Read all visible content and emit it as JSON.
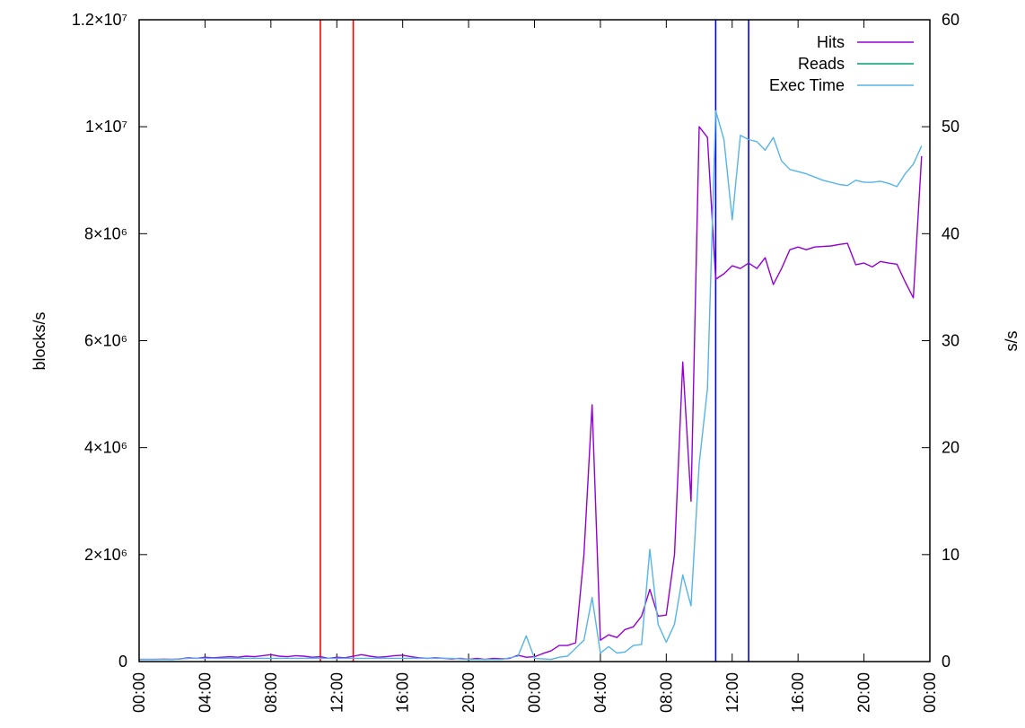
{
  "chart_data": {
    "type": "line",
    "ylabel": "blocks/s",
    "y2label": "s/s",
    "ylim": [
      0,
      12000000
    ],
    "y2lim": [
      0,
      60
    ],
    "xlim": [
      0,
      48
    ],
    "x_tick_labels": [
      "00:00",
      "04:00",
      "08:00",
      "12:00",
      "16:00",
      "20:00",
      "00:00",
      "04:00",
      "08:00",
      "12:00",
      "16:00",
      "20:00",
      "00:00"
    ],
    "y_tick_labels": [
      "0",
      "2×10⁶",
      "4×10⁶",
      "6×10⁶",
      "8×10⁶",
      "1×10⁷",
      "1.2×10⁷"
    ],
    "y2_tick_labels": [
      "0",
      "10",
      "20",
      "30",
      "40",
      "50",
      "60"
    ],
    "legend_position": "top-right",
    "legend": [
      "Hits",
      "Reads",
      "Exec Time"
    ],
    "vertical_markers": [
      {
        "x": 11.0,
        "color": "#ff0000"
      },
      {
        "x": 13.0,
        "color": "#ff0000"
      },
      {
        "x": 35.0,
        "color": "#0000ff"
      },
      {
        "x": 37.0,
        "color": "#0000ff"
      }
    ],
    "series": [
      {
        "name": "Hits",
        "axis": "y",
        "color": "#9400d3",
        "points": [
          [
            0,
            40000
          ],
          [
            0.5,
            40000
          ],
          [
            1,
            40000
          ],
          [
            1.5,
            45000
          ],
          [
            2,
            40000
          ],
          [
            2.5,
            50000
          ],
          [
            3,
            70000
          ],
          [
            3.5,
            60000
          ],
          [
            4,
            80000
          ],
          [
            4.5,
            70000
          ],
          [
            5,
            80000
          ],
          [
            5.5,
            90000
          ],
          [
            6,
            80000
          ],
          [
            6.5,
            100000
          ],
          [
            7,
            90000
          ],
          [
            7.5,
            110000
          ],
          [
            8,
            130000
          ],
          [
            8.5,
            100000
          ],
          [
            9,
            90000
          ],
          [
            9.5,
            110000
          ],
          [
            10,
            100000
          ],
          [
            10.5,
            80000
          ],
          [
            11,
            90000
          ],
          [
            11.5,
            60000
          ],
          [
            12,
            80000
          ],
          [
            12.5,
            70000
          ],
          [
            13,
            100000
          ],
          [
            13.5,
            130000
          ],
          [
            14,
            100000
          ],
          [
            14.5,
            80000
          ],
          [
            15,
            90000
          ],
          [
            15.5,
            110000
          ],
          [
            16,
            120000
          ],
          [
            16.5,
            90000
          ],
          [
            17,
            70000
          ],
          [
            17.5,
            60000
          ],
          [
            18,
            70000
          ],
          [
            18.5,
            60000
          ],
          [
            19,
            50000
          ],
          [
            19.5,
            60000
          ],
          [
            20,
            40000
          ],
          [
            20.5,
            60000
          ],
          [
            21,
            40000
          ],
          [
            21.5,
            60000
          ],
          [
            22,
            50000
          ],
          [
            22.5,
            60000
          ],
          [
            23,
            120000
          ],
          [
            23.5,
            80000
          ],
          [
            24,
            90000
          ],
          [
            24.5,
            150000
          ],
          [
            25,
            200000
          ],
          [
            25.5,
            300000
          ],
          [
            26,
            300000
          ],
          [
            26.5,
            350000
          ],
          [
            27,
            2000000
          ],
          [
            27.5,
            4800000
          ],
          [
            28,
            400000
          ],
          [
            28.5,
            500000
          ],
          [
            29,
            450000
          ],
          [
            29.5,
            600000
          ],
          [
            30,
            650000
          ],
          [
            30.5,
            850000
          ],
          [
            31,
            1350000
          ],
          [
            31.5,
            850000
          ],
          [
            32,
            870000
          ],
          [
            32.5,
            2000000
          ],
          [
            33,
            5600000
          ],
          [
            33.5,
            3000000
          ],
          [
            34,
            10000000
          ],
          [
            34.5,
            9800000
          ],
          [
            35,
            7150000
          ],
          [
            35.5,
            7250000
          ],
          [
            36,
            7400000
          ],
          [
            36.5,
            7350000
          ],
          [
            37,
            7450000
          ],
          [
            37.5,
            7350000
          ],
          [
            38,
            7550000
          ],
          [
            38.5,
            7050000
          ],
          [
            39,
            7350000
          ],
          [
            39.5,
            7700000
          ],
          [
            40,
            7750000
          ],
          [
            40.5,
            7700000
          ],
          [
            41,
            7750000
          ],
          [
            41.5,
            7760000
          ],
          [
            42,
            7770000
          ],
          [
            42.5,
            7800000
          ],
          [
            43,
            7820000
          ],
          [
            43.5,
            7420000
          ],
          [
            44,
            7450000
          ],
          [
            44.5,
            7380000
          ],
          [
            45,
            7480000
          ],
          [
            45.5,
            7450000
          ],
          [
            46,
            7430000
          ],
          [
            46.5,
            7100000
          ],
          [
            47,
            6800000
          ],
          [
            47.5,
            9450000
          ]
        ]
      },
      {
        "name": "Reads",
        "axis": "y",
        "color": "#009e73",
        "points": []
      },
      {
        "name": "Exec Time",
        "axis": "y2",
        "color": "#56b4e9",
        "points": [
          [
            0,
            0.2
          ],
          [
            1,
            0.2
          ],
          [
            2,
            0.2
          ],
          [
            3,
            0.3
          ],
          [
            4,
            0.3
          ],
          [
            5,
            0.3
          ],
          [
            6,
            0.3
          ],
          [
            7,
            0.3
          ],
          [
            8,
            0.3
          ],
          [
            9,
            0.3
          ],
          [
            10,
            0.3
          ],
          [
            11,
            0.3
          ],
          [
            12,
            0.3
          ],
          [
            13,
            0.3
          ],
          [
            14,
            0.3
          ],
          [
            15,
            0.3
          ],
          [
            16,
            0.3
          ],
          [
            17,
            0.3
          ],
          [
            18,
            0.3
          ],
          [
            19,
            0.3
          ],
          [
            20,
            0.2
          ],
          [
            21,
            0.2
          ],
          [
            22,
            0.2
          ],
          [
            23,
            0.5
          ],
          [
            23.5,
            2.4
          ],
          [
            24,
            0.3
          ],
          [
            25,
            0.2
          ],
          [
            25.5,
            0.4
          ],
          [
            26,
            0.5
          ],
          [
            27,
            2.0
          ],
          [
            27.5,
            6.0
          ],
          [
            28,
            0.8
          ],
          [
            28.5,
            1.4
          ],
          [
            29,
            0.8
          ],
          [
            29.5,
            0.9
          ],
          [
            30,
            1.5
          ],
          [
            30.5,
            1.6
          ],
          [
            31,
            10.5
          ],
          [
            31.5,
            3.5
          ],
          [
            32,
            1.8
          ],
          [
            32.5,
            3.5
          ],
          [
            33,
            8.1
          ],
          [
            33.5,
            5.2
          ],
          [
            34,
            18.5
          ],
          [
            34.5,
            25.5
          ],
          [
            35,
            51.5
          ],
          [
            35.5,
            48.8
          ],
          [
            36,
            41.3
          ],
          [
            36.5,
            49.2
          ],
          [
            37,
            48.8
          ],
          [
            37.5,
            48.6
          ],
          [
            38,
            47.8
          ],
          [
            38.5,
            49.0
          ],
          [
            39,
            46.8
          ],
          [
            39.5,
            46.0
          ],
          [
            40,
            45.8
          ],
          [
            40.5,
            45.6
          ],
          [
            41,
            45.3
          ],
          [
            41.5,
            45.0
          ],
          [
            42,
            44.8
          ],
          [
            42.5,
            44.6
          ],
          [
            43,
            44.5
          ],
          [
            43.5,
            45.0
          ],
          [
            44,
            44.8
          ],
          [
            44.5,
            44.8
          ],
          [
            45,
            44.9
          ],
          [
            45.5,
            44.7
          ],
          [
            46,
            44.4
          ],
          [
            46.5,
            45.6
          ],
          [
            47,
            46.5
          ],
          [
            47.5,
            48.2
          ]
        ]
      }
    ]
  }
}
